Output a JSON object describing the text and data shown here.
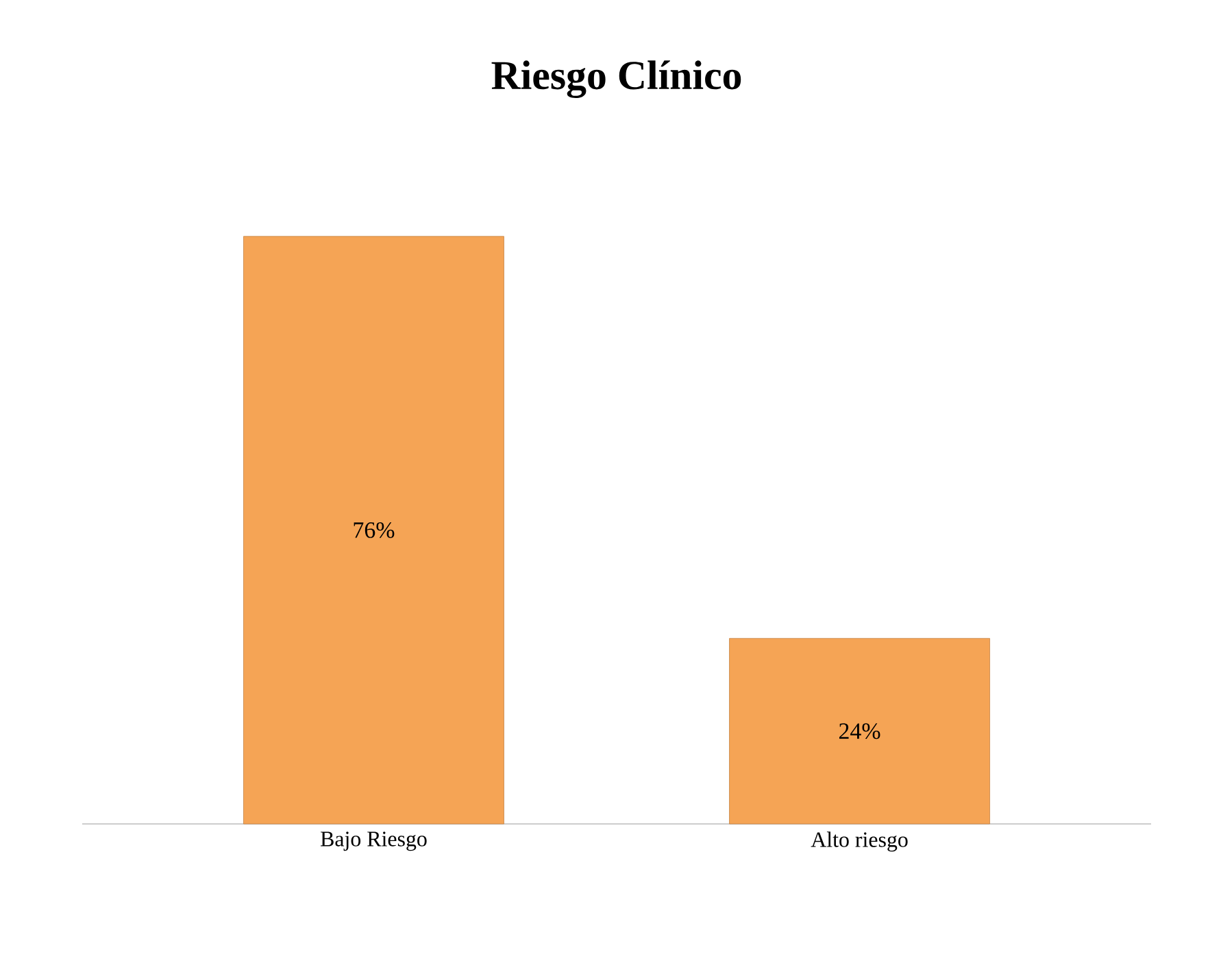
{
  "chart_data": {
    "type": "bar",
    "title": "Riesgo Clínico",
    "categories": [
      "Bajo Riesgo",
      "Alto riesgo"
    ],
    "values": [
      76,
      24
    ],
    "value_labels": [
      "76%",
      "24%"
    ],
    "color": "#f5a455"
  }
}
